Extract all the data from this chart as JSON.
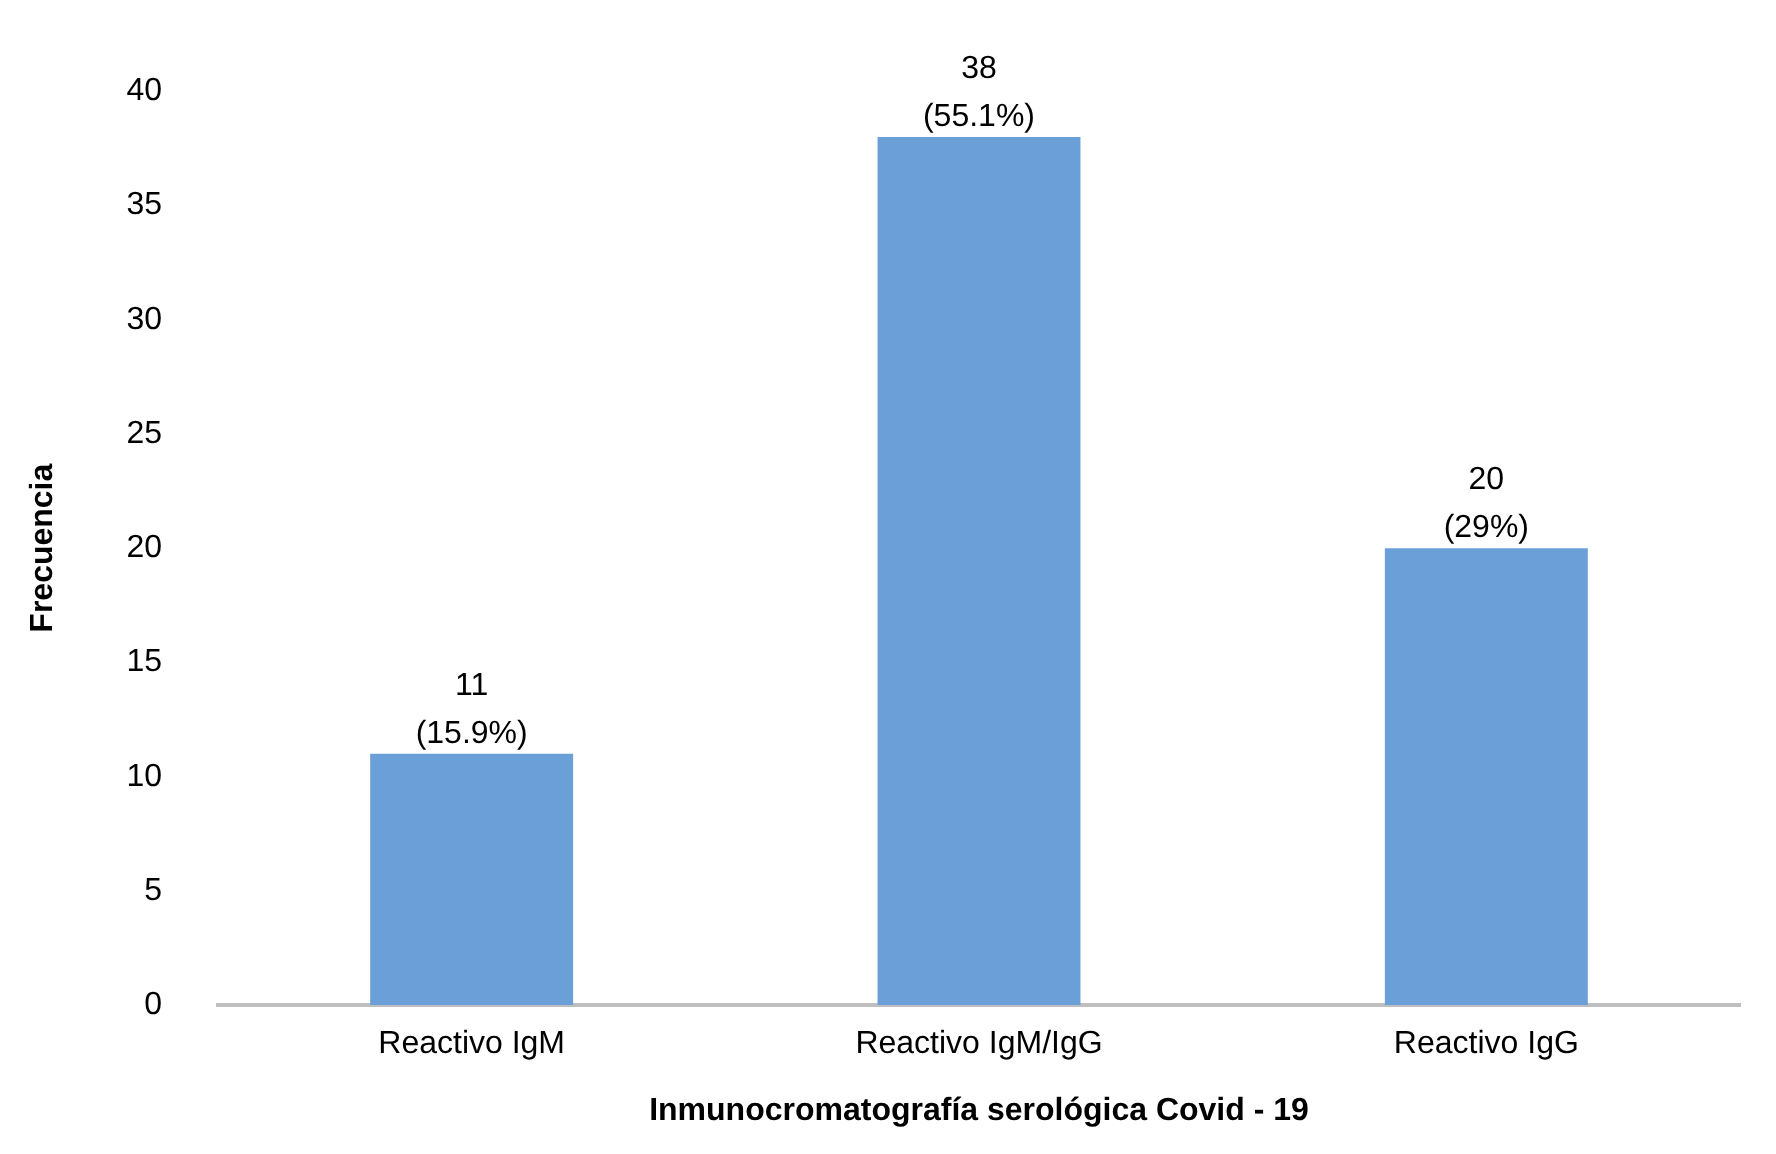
{
  "chart_data": {
    "type": "bar",
    "xlabel": "Inmunocromatografía serológica Covid - 19",
    "ylabel": "Frecuencia",
    "categories": [
      "Reactivo IgM",
      "Reactivo IgM/IgG",
      "Reactivo IgG"
    ],
    "values": [
      11,
      38,
      20
    ],
    "color": "#6a9fd8",
    "value_labels": [
      "11\n(15.9%)",
      "38\n(55.1%)",
      "20\n(29%)"
    ],
    "ylim": [
      0,
      40
    ],
    "yticks": [
      0,
      5,
      10,
      15,
      20,
      25,
      30,
      35,
      40
    ],
    "grid": false,
    "legend": false
  }
}
